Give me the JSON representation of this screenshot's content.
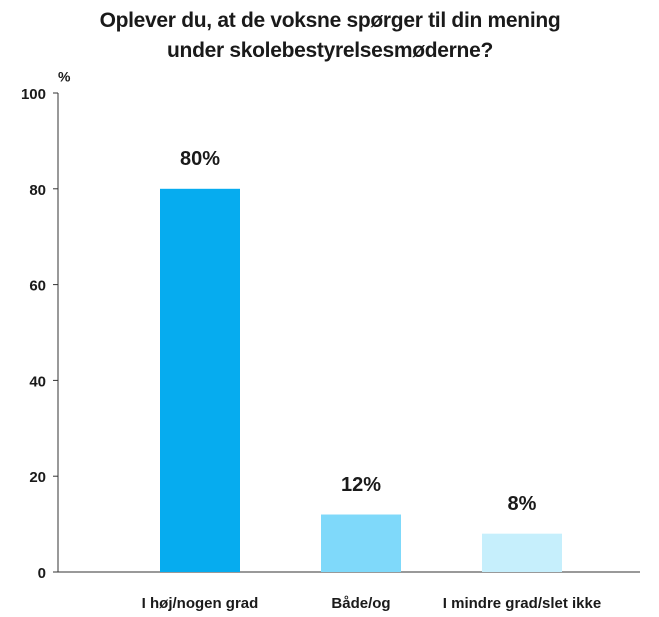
{
  "chart_data": {
    "type": "bar",
    "title": "Oplever du, at de voksne spørger til din mening under skolebestyrelsesmøderne?",
    "y_label": "%",
    "categories": [
      "I høj/nogen grad",
      "Både/og",
      "I mindre grad/slet ikke"
    ],
    "values": [
      80,
      12,
      8
    ],
    "value_labels": [
      "80%",
      "12%",
      "8%"
    ],
    "colors": [
      "#06acef",
      "#7fd9fa",
      "#c6effc"
    ],
    "ylim": [
      0,
      100
    ],
    "yticks": [
      0,
      20,
      40,
      60,
      80,
      100
    ],
    "grid": false
  }
}
